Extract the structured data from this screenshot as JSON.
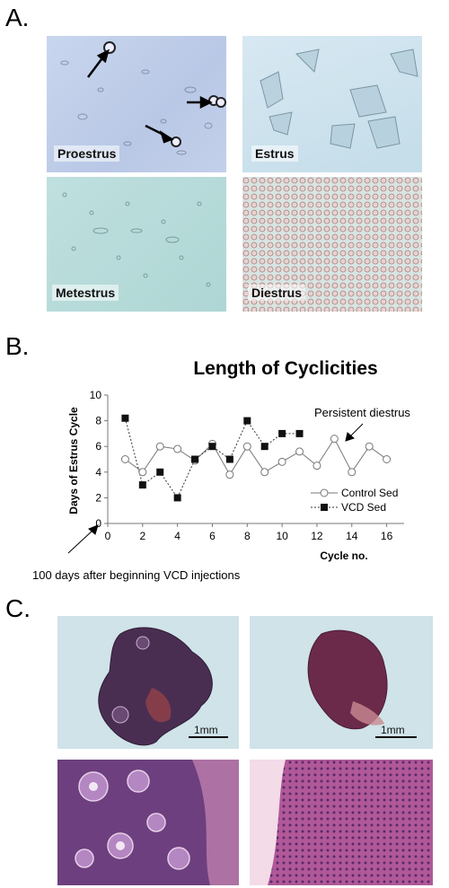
{
  "panels": {
    "a_label": "A.",
    "b_label": "B.",
    "c_label": "C."
  },
  "micrographs": {
    "proestrus": "Proestrus",
    "estrus": "Estrus",
    "metestrus": "Metestrus",
    "diestrus": "Diestrus"
  },
  "histology": {
    "scale_left": "1mm",
    "scale_right": "1mm"
  },
  "chart_data": {
    "type": "line",
    "title": "Length of Cyclicities",
    "xlabel": "Cycle no.",
    "ylabel": "Days of Estrus Cycle",
    "xlim": [
      0,
      17
    ],
    "ylim": [
      0,
      10
    ],
    "xticks": [
      0,
      2,
      4,
      6,
      8,
      10,
      12,
      14,
      16
    ],
    "yticks": [
      0,
      2,
      4,
      6,
      8,
      10
    ],
    "grid": false,
    "legend": "bottom-right",
    "series": [
      {
        "name": "Control Sed",
        "marker": "open-circle",
        "line": "solid",
        "x": [
          1,
          2,
          3,
          4,
          5,
          6,
          7,
          8,
          9,
          10,
          11,
          12,
          13,
          14,
          15,
          16
        ],
        "y": [
          5.0,
          4.0,
          6.0,
          5.8,
          4.9,
          6.2,
          3.8,
          6.0,
          4.0,
          4.8,
          5.6,
          4.5,
          6.6,
          4.0,
          6.0,
          5.0
        ]
      },
      {
        "name": "VCD Sed",
        "marker": "filled-square",
        "line": "dashed",
        "x": [
          1,
          2,
          3,
          4,
          5,
          6,
          7,
          8,
          9,
          10,
          11
        ],
        "y": [
          8.2,
          3.0,
          4.0,
          2.0,
          5.0,
          6.0,
          5.0,
          8.0,
          6.0,
          7.0,
          7.0
        ]
      }
    ],
    "annotations": [
      {
        "text": "Persistent diestrus",
        "points_to": [
          11,
          7
        ]
      },
      {
        "text": "100 days after beginning VCD injections",
        "points_to": [
          0,
          0
        ]
      }
    ]
  }
}
